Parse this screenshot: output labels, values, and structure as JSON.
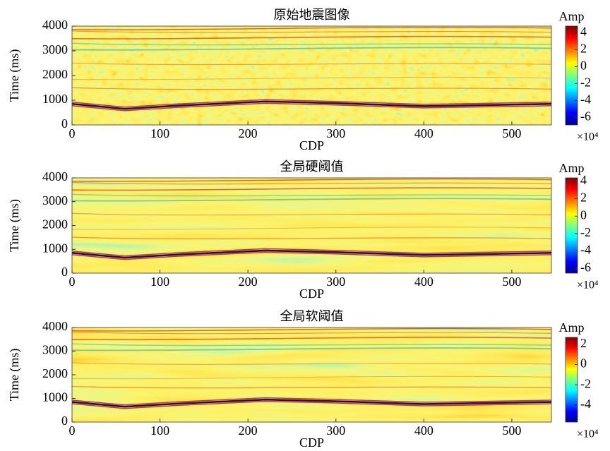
{
  "chart_data": [
    {
      "type": "heatmap",
      "title": "原始地震图像",
      "x_label": "CDP",
      "y_label": "Time (ms)",
      "xlim": [
        0,
        545
      ],
      "xticks": [
        0,
        100,
        200,
        300,
        400,
        500
      ],
      "ylim": [
        4000,
        0
      ],
      "yticks": [
        0,
        1000,
        2000,
        3000,
        4000
      ],
      "colormap": "jet",
      "colorbar_label": "Amp",
      "colorbar_exponent": "×10⁴",
      "clim": [
        -6.9,
        4.8
      ],
      "cticks": [
        4,
        2,
        0,
        -2,
        -4,
        -6
      ]
    },
    {
      "type": "heatmap",
      "title": "全局硬阈值",
      "x_label": "CDP",
      "y_label": "Time (ms)",
      "xlim": [
        0,
        545
      ],
      "xticks": [
        0,
        100,
        200,
        300,
        400,
        500
      ],
      "ylim": [
        4000,
        0
      ],
      "yticks": [
        0,
        1000,
        2000,
        3000,
        4000
      ],
      "colormap": "jet",
      "colorbar_label": "Amp",
      "colorbar_exponent": "×10⁴",
      "clim": [
        -6.55,
        4.4
      ],
      "cticks": [
        4,
        2,
        0,
        -2,
        -4,
        -6
      ]
    },
    {
      "type": "heatmap",
      "title": "全局软阈值",
      "x_label": "CDP",
      "y_label": "Time (ms)",
      "xlim": [
        0,
        545
      ],
      "xticks": [
        0,
        100,
        200,
        300,
        400,
        500
      ],
      "ylim": [
        4000,
        0
      ],
      "yticks": [
        0,
        1000,
        2000,
        3000,
        4000
      ],
      "colormap": "jet",
      "colorbar_label": "Amp",
      "colorbar_exponent": "×10⁴",
      "clim": [
        -5.7,
        2.7
      ],
      "cticks": [
        2,
        0,
        -2,
        -4
      ]
    }
  ]
}
